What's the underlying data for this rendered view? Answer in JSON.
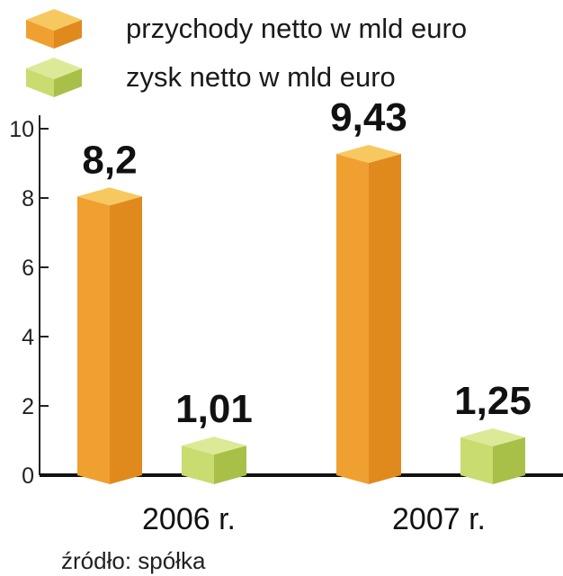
{
  "chart_data": {
    "type": "bar",
    "categories": [
      "2006 r.",
      "2007 r."
    ],
    "series": [
      {
        "name": "przychody netto w mld euro",
        "values": [
          8.2,
          9.43
        ],
        "labels": [
          "8,2",
          "9,43"
        ],
        "color": "#f0a030",
        "color_dark": "#e08a1e",
        "color_top": "#f8c860"
      },
      {
        "name": "zysk netto w mld euro",
        "values": [
          1.01,
          1.25
        ],
        "labels": [
          "1,01",
          "1,25"
        ],
        "color": "#c8dc70",
        "color_dark": "#a8c048",
        "color_top": "#dcea98"
      }
    ],
    "yticks": [
      "0",
      "2",
      "4",
      "6",
      "8",
      "10"
    ],
    "ylim": [
      0,
      10
    ],
    "grid": false,
    "legend_position": "top-left",
    "source": "źródło: spółka"
  }
}
